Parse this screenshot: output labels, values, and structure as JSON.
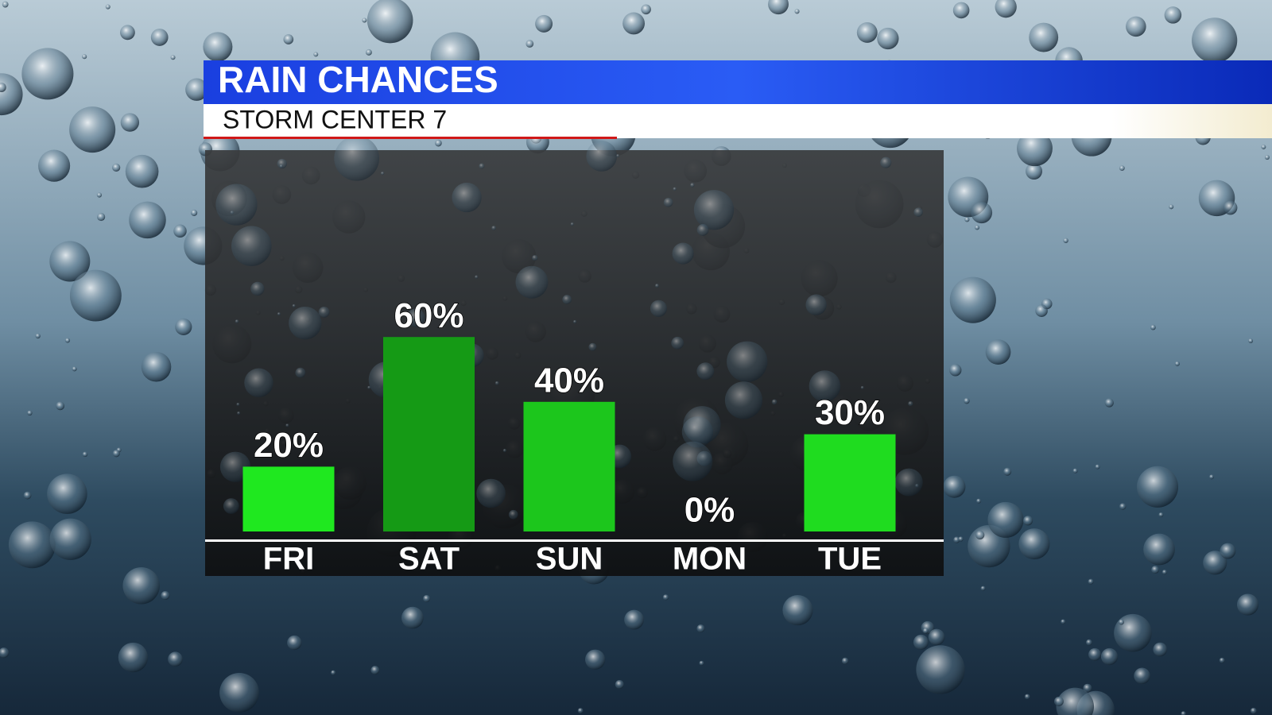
{
  "chart_data": {
    "type": "bar",
    "title": "RAIN CHANCES",
    "subtitle": "STORM CENTER 7",
    "categories": [
      "FRI",
      "SAT",
      "SUN",
      "MON",
      "TUE"
    ],
    "values": [
      20,
      60,
      40,
      0,
      30
    ],
    "value_labels": [
      "20%",
      "60%",
      "40%",
      "0%",
      "30%"
    ],
    "colors": [
      "#1fe81f",
      "#159a15",
      "#1cc61c",
      "#1cc61c",
      "#1fdc1f"
    ]
  }
}
